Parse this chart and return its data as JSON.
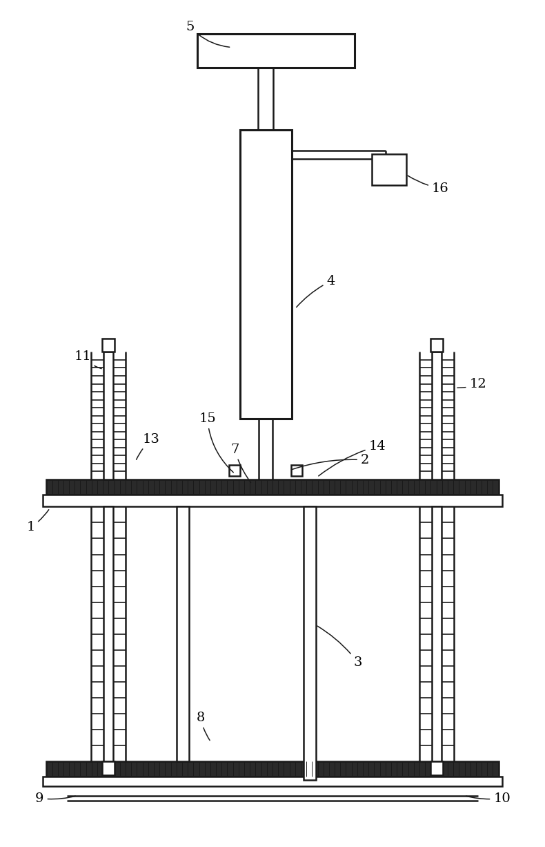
{
  "bg_color": "#ffffff",
  "line_color": "#1a1a1a",
  "lw": 1.8,
  "tlw": 2.2,
  "fig_width": 7.9,
  "fig_height": 12.26
}
